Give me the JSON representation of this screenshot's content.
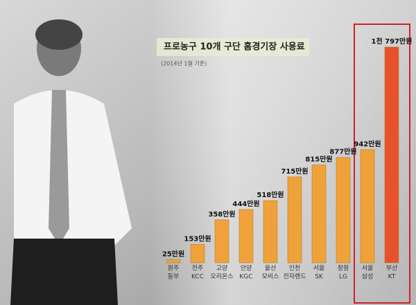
{
  "chart_data": {
    "type": "bar",
    "title": "프로농구 10개 구단 홈경기장 사용료",
    "subtitle": "(2014년 1월 기준)",
    "categories": [
      [
        "원주",
        "동부"
      ],
      [
        "전주",
        "KCC"
      ],
      [
        "고양",
        "오리온스"
      ],
      [
        "안양",
        "KGC"
      ],
      [
        "울산",
        "모비스"
      ],
      [
        "인천",
        "전자랜드"
      ],
      [
        "서울",
        "SK"
      ],
      [
        "창원",
        "LG"
      ],
      [
        "서울",
        "삼성"
      ],
      [
        "부산",
        "KT"
      ]
    ],
    "values": [
      25,
      153,
      358,
      444,
      518,
      715,
      815,
      877,
      942,
      1797
    ],
    "value_labels": [
      "25만원",
      "153만원",
      "358만원",
      "444만원",
      "518만원",
      "715만원",
      "815만원",
      "877만원",
      "942만원",
      "1천 797만원"
    ],
    "colors": [
      "#f0a23a",
      "#f0a23a",
      "#f0a23a",
      "#f0a23a",
      "#f0a23a",
      "#f0a23a",
      "#f0a23a",
      "#f0a23a",
      "#f0a23a",
      "#e8522a"
    ]
  }
}
